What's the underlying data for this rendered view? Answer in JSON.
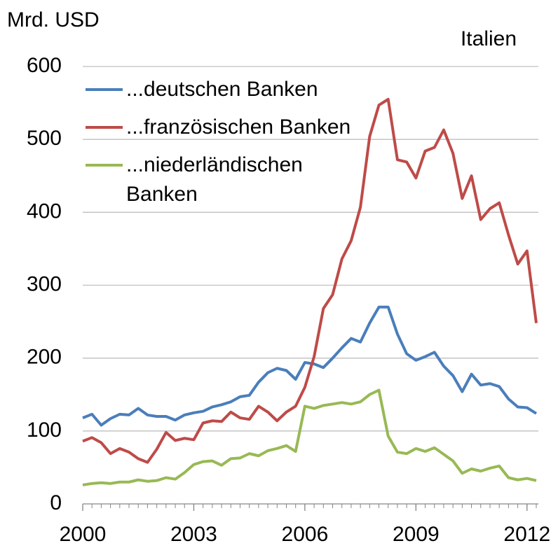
{
  "chart_data": {
    "type": "line",
    "title": "Italien",
    "ylabel": "Mrd. USD",
    "x": [
      2000,
      2000.25,
      2000.5,
      2000.75,
      2001,
      2001.25,
      2001.5,
      2001.75,
      2002,
      2002.25,
      2002.5,
      2002.75,
      2003,
      2003.25,
      2003.5,
      2003.75,
      2004,
      2004.25,
      2004.5,
      2004.75,
      2005,
      2005.25,
      2005.5,
      2005.75,
      2006,
      2006.25,
      2006.5,
      2006.75,
      2007,
      2007.25,
      2007.5,
      2007.75,
      2008,
      2008.25,
      2008.5,
      2008.75,
      2009,
      2009.25,
      2009.5,
      2009.75,
      2010,
      2010.25,
      2010.5,
      2010.75,
      2011,
      2011.25,
      2011.5,
      2011.75,
      2012,
      2012.25
    ],
    "series": [
      {
        "name": "...deutschen Banken",
        "color": "#4a7ebb",
        "values": [
          118,
          123,
          108,
          117,
          123,
          122,
          131,
          122,
          120,
          120,
          115,
          122,
          125,
          127,
          133,
          136,
          140,
          147,
          149,
          167,
          180,
          186,
          183,
          171,
          194,
          192,
          187,
          200,
          214,
          227,
          222,
          248,
          270,
          270,
          233,
          206,
          197,
          202,
          208,
          189,
          176,
          154,
          178,
          163,
          165,
          161,
          144,
          133,
          132,
          124
        ]
      },
      {
        "name": "...französischen Banken",
        "color": "#be4b48",
        "values": [
          86,
          91,
          84,
          69,
          76,
          71,
          62,
          57,
          75,
          98,
          87,
          90,
          88,
          111,
          114,
          113,
          126,
          118,
          116,
          134,
          126,
          114,
          126,
          134,
          160,
          202,
          268,
          287,
          336,
          361,
          407,
          504,
          547,
          555,
          472,
          469,
          447,
          484,
          489,
          513,
          481,
          419,
          450,
          390,
          405,
          413,
          369,
          329,
          347,
          248
        ]
      },
      {
        "name": "...niederländischen Banken",
        "color": "#98b954",
        "values": [
          26,
          28,
          29,
          28,
          30,
          30,
          33,
          31,
          32,
          36,
          34,
          43,
          54,
          58,
          59,
          53,
          62,
          63,
          69,
          66,
          73,
          76,
          80,
          72,
          134,
          131,
          135,
          137,
          139,
          137,
          140,
          150,
          156,
          93,
          71,
          69,
          76,
          72,
          77,
          68,
          59,
          42,
          48,
          45,
          49,
          52,
          36,
          33,
          35,
          32
        ]
      }
    ],
    "xlim": [
      2000,
      2012.25
    ],
    "xticks": [
      2000,
      2003,
      2006,
      2009,
      2012
    ],
    "ylim": [
      0,
      600
    ],
    "yticks": [
      0,
      100,
      200,
      300,
      400,
      500,
      600
    ],
    "grid": true,
    "legend": "upper left"
  }
}
